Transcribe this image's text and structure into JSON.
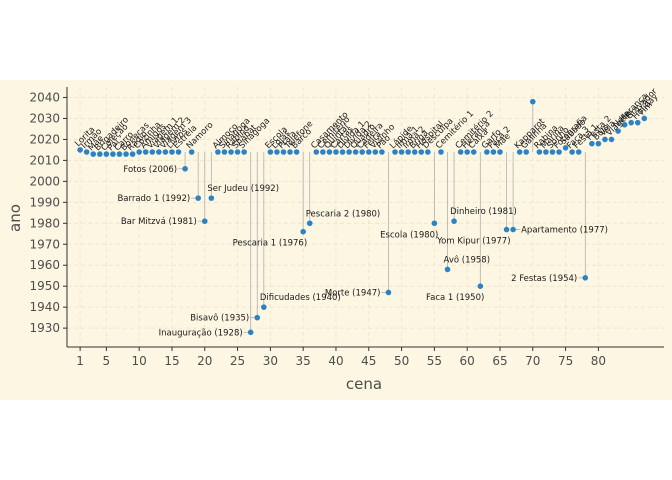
{
  "chart_data": {
    "type": "scatter",
    "xlabel": "cena",
    "ylabel": "ano",
    "xlim": [
      -1,
      90
    ],
    "ylim": [
      1921,
      2045
    ],
    "xticks": [
      1,
      5,
      10,
      15,
      20,
      25,
      30,
      35,
      40,
      45,
      50,
      55,
      60,
      65,
      70,
      75,
      80
    ],
    "yticks": [
      1930,
      1940,
      1950,
      1960,
      1970,
      1980,
      1990,
      2000,
      2010,
      2020,
      2030,
      2040
    ],
    "grid": true,
    "background": "#fdf6e3",
    "grid_color": "#efe6d0",
    "point_color": "#2b83c6",
    "segment_color": "#b0b0b0",
    "timeline_year": 2014,
    "labeled_points": [
      {
        "x": 17,
        "y": 2006,
        "label": "Fotos (2006)",
        "side": "left"
      },
      {
        "x": 19,
        "y": 1992,
        "label": "Barrado 1 (1992)",
        "side": "left"
      },
      {
        "x": 20,
        "y": 1981,
        "label": "Bar Mitzvá (1981)",
        "side": "left"
      },
      {
        "x": 21,
        "y": 1992,
        "label": "Ser Judeu (1992)",
        "side": "above"
      },
      {
        "x": 27,
        "y": 1928,
        "label": "Inauguração (1928)",
        "side": "left"
      },
      {
        "x": 28,
        "y": 1935,
        "label": "Bisavô (1935)",
        "side": "left"
      },
      {
        "x": 29,
        "y": 1940,
        "label": "Dificudades (1940)",
        "side": "above"
      },
      {
        "x": 35,
        "y": 1976,
        "label": "Pescaria 1 (1976)",
        "side": "below"
      },
      {
        "x": 36,
        "y": 1980,
        "label": "Pescaria 2 (1980)",
        "side": "above"
      },
      {
        "x": 48,
        "y": 1947,
        "label": "Morte (1947)",
        "side": "left"
      },
      {
        "x": 55,
        "y": 1980,
        "label": "Escola (1980)",
        "side": "below"
      },
      {
        "x": 57,
        "y": 1958,
        "label": "Avô (1958)",
        "side": "above"
      },
      {
        "x": 58,
        "y": 1981,
        "label": "Dinheiro (1981)",
        "side": "above"
      },
      {
        "x": 62,
        "y": 1950,
        "label": "Faca 1 (1950)",
        "side": "below"
      },
      {
        "x": 66,
        "y": 1977,
        "label": "Yom Kipur (1977)",
        "side": "below"
      },
      {
        "x": 67,
        "y": 1977,
        "label": "Apartamento (1977)",
        "side": "right"
      },
      {
        "x": 70,
        "y": 2038,
        "label": "",
        "side": "none"
      },
      {
        "x": 78,
        "y": 1954,
        "label": "2 Festas (1954)",
        "side": "left"
      }
    ],
    "timeline_points": [
      {
        "x": 1,
        "y": 2015,
        "label": "Lorita"
      },
      {
        "x": 2,
        "y": 2014,
        "label": "Irmão"
      },
      {
        "x": 3,
        "y": 2013,
        "label": "Mãe"
      },
      {
        "x": 4,
        "y": 2013,
        "label": "Brigadeiro"
      },
      {
        "x": 5,
        "y": 2013,
        "label": "Coleção"
      },
      {
        "x": 6,
        "y": 2013,
        "label": "Pai"
      },
      {
        "x": 7,
        "y": 2013,
        "label": "Carro"
      },
      {
        "x": 8,
        "y": 2013,
        "label": "Bonecas"
      },
      {
        "x": 9,
        "y": 2013,
        "label": "Rádio"
      },
      {
        "x": 10,
        "y": 2014,
        "label": "Cozinha"
      },
      {
        "x": 11,
        "y": 2014,
        "label": "Amigos"
      },
      {
        "x": 12,
        "y": 2014,
        "label": "Viagem 1"
      },
      {
        "x": 13,
        "y": 2014,
        "label": "Viagem 2"
      },
      {
        "x": 14,
        "y": 2014,
        "label": "Viagem 3"
      },
      {
        "x": 15,
        "y": 2014,
        "label": "Livros"
      },
      {
        "x": 16,
        "y": 2014,
        "label": "Estrela"
      },
      {
        "x": 18,
        "y": 2014,
        "label": "Namoro"
      },
      {
        "x": 22,
        "y": 2014,
        "label": "Almoço"
      },
      {
        "x": 23,
        "y": 2014,
        "label": "Sinagoga"
      },
      {
        "x": 24,
        "y": 2014,
        "label": "Rabino"
      },
      {
        "x": 25,
        "y": 2014,
        "label": "Shabat"
      },
      {
        "x": 26,
        "y": 2014,
        "label": "Sinagoga"
      },
      {
        "x": 30,
        "y": 2014,
        "label": "Escola"
      },
      {
        "x": 31,
        "y": 2014,
        "label": "Lojas"
      },
      {
        "x": 32,
        "y": 2014,
        "label": "Praia"
      },
      {
        "x": 33,
        "y": 2014,
        "label": "Telefone"
      },
      {
        "x": 34,
        "y": 2014,
        "label": "Barco"
      },
      {
        "x": 37,
        "y": 2014,
        "label": "Casamento"
      },
      {
        "x": 38,
        "y": 2014,
        "label": "Cemitério"
      },
      {
        "x": 39,
        "y": 2014,
        "label": "Quintal"
      },
      {
        "x": 40,
        "y": 2014,
        "label": "Cartas"
      },
      {
        "x": 41,
        "y": 2014,
        "label": "Dívida 1"
      },
      {
        "x": 42,
        "y": 2014,
        "label": "Dívida 2"
      },
      {
        "x": 43,
        "y": 2014,
        "label": "Quadro"
      },
      {
        "x": 44,
        "y": 2014,
        "label": "Cadeira"
      },
      {
        "x": 45,
        "y": 2014,
        "label": "Feira"
      },
      {
        "x": 46,
        "y": 2014,
        "label": "Vizinho"
      },
      {
        "x": 47,
        "y": 2014,
        "label": "Pão"
      },
      {
        "x": 49,
        "y": 2014,
        "label": "Lápide"
      },
      {
        "x": 50,
        "y": 2014,
        "label": "Irmã 1"
      },
      {
        "x": 51,
        "y": 2014,
        "label": "Irmã 2"
      },
      {
        "x": 52,
        "y": 2014,
        "label": "Briga"
      },
      {
        "x": 53,
        "y": 2014,
        "label": "Hospital"
      },
      {
        "x": 54,
        "y": 2014,
        "label": "Desculpa"
      },
      {
        "x": 56,
        "y": 2014,
        "label": "Cemitério 1"
      },
      {
        "x": 59,
        "y": 2014,
        "label": "Cemitério 2"
      },
      {
        "x": 60,
        "y": 2014,
        "label": "Herança"
      },
      {
        "x": 61,
        "y": 2014,
        "label": "Caixa"
      },
      {
        "x": 63,
        "y": 2014,
        "label": "Garfo"
      },
      {
        "x": 64,
        "y": 2014,
        "label": "Faca 2"
      },
      {
        "x": 65,
        "y": 2014,
        "label": "Mãe"
      },
      {
        "x": 68,
        "y": 2014,
        "label": "Kapparot"
      },
      {
        "x": 69,
        "y": 2014,
        "label": "Galinha"
      },
      {
        "x": 71,
        "y": 2014,
        "label": "Rabina"
      },
      {
        "x": 72,
        "y": 2014,
        "label": "Marina"
      },
      {
        "x": 73,
        "y": 2014,
        "label": "Sonho"
      },
      {
        "x": 74,
        "y": 2014,
        "label": "Fotografia"
      },
      {
        "x": 75,
        "y": 2016,
        "label": "Sábado"
      },
      {
        "x": 76,
        "y": 2014,
        "label": "Faca 3"
      },
      {
        "x": 77,
        "y": 2014,
        "label": "Festa 1"
      },
      {
        "x": 79,
        "y": 2018,
        "label": "Festa 2"
      },
      {
        "x": 80,
        "y": 2018,
        "label": "Bolo"
      },
      {
        "x": 81,
        "y": 2020,
        "label": "Vela"
      },
      {
        "x": 82,
        "y": 2020,
        "label": "Viagem"
      },
      {
        "x": 83,
        "y": 2024,
        "label": "Neta"
      },
      {
        "x": 84,
        "y": 2027,
        "label": "Herança"
      },
      {
        "x": 85,
        "y": 2028,
        "label": "Gravador"
      },
      {
        "x": 86,
        "y": 2028,
        "label": "Holiday"
      },
      {
        "x": 87,
        "y": 2030,
        "label": "Fim"
      }
    ]
  }
}
